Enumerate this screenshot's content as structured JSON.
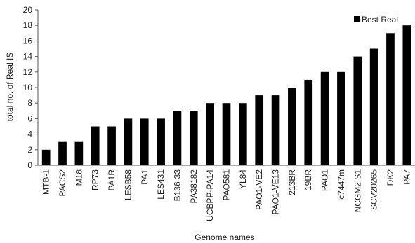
{
  "chart_data": {
    "type": "bar",
    "title": "",
    "xlabel": "Genome names",
    "ylabel": "total no. of Real IS",
    "ylim": [
      0,
      20
    ],
    "ytick_step": 2,
    "grid": false,
    "legend_position": "top-right",
    "bar_color": "#000000",
    "categories": [
      "MTB-1",
      "PACS2",
      "M18",
      "RP73",
      "PA1R",
      "LESB58",
      "PA1",
      "LES431",
      "B136-33",
      "PA38182",
      "UCBPP-PA14",
      "PAO581",
      "YL84",
      "PAO1-VE2",
      "PAO1-VE13",
      "213BR",
      "19BR",
      "PAO1",
      "c7447m",
      "NCGM2.S1",
      "SCV20265",
      "DK2",
      "PA7"
    ],
    "series": [
      {
        "name": "Best Real",
        "values": [
          2,
          3,
          3,
          5,
          5,
          6,
          6,
          6,
          7,
          7,
          8,
          8,
          8,
          9,
          9,
          10,
          11,
          12,
          12,
          14,
          15,
          17,
          18
        ]
      }
    ]
  }
}
